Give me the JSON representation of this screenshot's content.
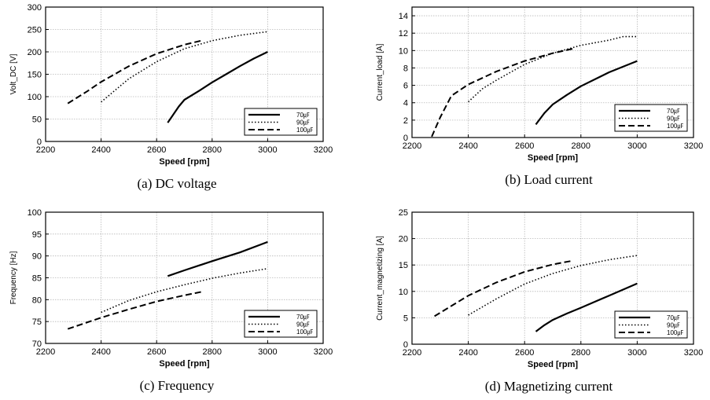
{
  "chart_data": [
    {
      "type": "line",
      "caption": "(a)  DC  voltage",
      "xlabel": "Speed [rpm]",
      "ylabel": "Volt_DC [V]",
      "xlim": [
        2200,
        3200
      ],
      "ylim": [
        0,
        300
      ],
      "xticks": [
        2200,
        2400,
        2600,
        2800,
        3000,
        3200
      ],
      "yticks": [
        0,
        50,
        100,
        150,
        200,
        250,
        300
      ],
      "xtick_labels": [
        "2200",
        "2400",
        "2600",
        "2800",
        "3000",
        "3200"
      ],
      "ytick_labels": [
        "0",
        "50",
        "100",
        "150",
        "200",
        "250",
        "300"
      ],
      "grid": true,
      "legend_position": "bottom-right",
      "series": [
        {
          "name": "70㎌",
          "style": "solid",
          "points": [
            [
              2640,
              42
            ],
            [
              2660,
              60
            ],
            [
              2680,
              78
            ],
            [
              2700,
              93
            ],
            [
              2750,
              112
            ],
            [
              2800,
              132
            ],
            [
              2850,
              150
            ],
            [
              2900,
              168
            ],
            [
              2950,
              185
            ],
            [
              3000,
              200
            ]
          ]
        },
        {
          "name": "90㎌",
          "style": "dotted",
          "points": [
            [
              2400,
              88
            ],
            [
              2500,
              140
            ],
            [
              2600,
              178
            ],
            [
              2700,
              207
            ],
            [
              2800,
              225
            ],
            [
              2900,
              237
            ],
            [
              3000,
              245
            ]
          ]
        },
        {
          "name": "100㎌",
          "style": "dashed",
          "points": [
            [
              2280,
              85
            ],
            [
              2350,
              112
            ],
            [
              2400,
              133
            ],
            [
              2500,
              168
            ],
            [
              2600,
              196
            ],
            [
              2700,
              216
            ],
            [
              2760,
              225
            ]
          ]
        }
      ]
    },
    {
      "type": "line",
      "caption": "(b)  Load  current",
      "xlabel": "Speed [rpm]",
      "ylabel": "Current_load [A]",
      "xlim": [
        2200,
        3200
      ],
      "ylim": [
        0,
        15
      ],
      "xticks": [
        2200,
        2400,
        2600,
        2800,
        3000,
        3200
      ],
      "yticks": [
        0,
        2,
        4,
        6,
        8,
        10,
        12,
        14
      ],
      "xtick_labels": [
        "2200",
        "2400",
        "2600",
        "2800",
        "3000",
        "3200"
      ],
      "ytick_labels": [
        "0",
        "2",
        "4",
        "6",
        "8",
        "10",
        "12",
        "14"
      ],
      "grid": true,
      "legend_position": "bottom-right",
      "series": [
        {
          "name": "70㎌",
          "style": "solid",
          "points": [
            [
              2640,
              1.5
            ],
            [
              2670,
              2.8
            ],
            [
              2700,
              3.8
            ],
            [
              2750,
              4.9
            ],
            [
              2800,
              5.9
            ],
            [
              2900,
              7.5
            ],
            [
              3000,
              8.8
            ]
          ]
        },
        {
          "name": "90㎌",
          "style": "dotted",
          "points": [
            [
              2400,
              4.1
            ],
            [
              2450,
              5.6
            ],
            [
              2500,
              6.6
            ],
            [
              2600,
              8.4
            ],
            [
              2700,
              9.7
            ],
            [
              2800,
              10.6
            ],
            [
              2900,
              11.2
            ],
            [
              2950,
              11.6
            ],
            [
              3000,
              11.6
            ]
          ]
        },
        {
          "name": "100㎌",
          "style": "dashed",
          "points": [
            [
              2270,
              0.1
            ],
            [
              2300,
              2.3
            ],
            [
              2340,
              4.8
            ],
            [
              2400,
              6.1
            ],
            [
              2500,
              7.6
            ],
            [
              2600,
              8.8
            ],
            [
              2700,
              9.7
            ],
            [
              2770,
              10.2
            ]
          ]
        }
      ]
    },
    {
      "type": "line",
      "caption": "(c)  Frequency",
      "xlabel": "Speed [rpm]",
      "ylabel": "Frequency [Hz]",
      "xlim": [
        2200,
        3200
      ],
      "ylim": [
        70,
        100
      ],
      "xticks": [
        2200,
        2400,
        2600,
        2800,
        3000,
        3200
      ],
      "yticks": [
        70,
        75,
        80,
        85,
        90,
        95,
        100
      ],
      "xtick_labels": [
        "2200",
        "2400",
        "2600",
        "2800",
        "3000",
        "3200"
      ],
      "ytick_labels": [
        "70",
        "75",
        "80",
        "85",
        "90",
        "95",
        "100"
      ],
      "grid": true,
      "legend_position": "bottom-right",
      "series": [
        {
          "name": "70㎌",
          "style": "solid",
          "points": [
            [
              2640,
              85.4
            ],
            [
              2700,
              86.7
            ],
            [
              2800,
              88.8
            ],
            [
              2900,
              90.8
            ],
            [
              3000,
              93.2
            ]
          ]
        },
        {
          "name": "90㎌",
          "style": "dotted",
          "points": [
            [
              2400,
              77.1
            ],
            [
              2500,
              79.8
            ],
            [
              2600,
              81.8
            ],
            [
              2700,
              83.4
            ],
            [
              2800,
              84.9
            ],
            [
              2900,
              86.1
            ],
            [
              3000,
              87.1
            ]
          ]
        },
        {
          "name": "100㎌",
          "style": "dashed",
          "points": [
            [
              2280,
              73.3
            ],
            [
              2400,
              75.9
            ],
            [
              2500,
              77.8
            ],
            [
              2600,
              79.6
            ],
            [
              2700,
              81.0
            ],
            [
              2770,
              81.9
            ]
          ]
        }
      ]
    },
    {
      "type": "line",
      "caption": "(d)  Magnetizing  current",
      "xlabel": "Speed [rpm]",
      "ylabel": "Current_magnetizing [A]",
      "xlim": [
        2200,
        3200
      ],
      "ylim": [
        0,
        25
      ],
      "xticks": [
        2200,
        2400,
        2600,
        2800,
        3000,
        3200
      ],
      "yticks": [
        0,
        5,
        10,
        15,
        20,
        25
      ],
      "xtick_labels": [
        "2200",
        "2400",
        "2600",
        "2800",
        "3000",
        "3200"
      ],
      "ytick_labels": [
        "0",
        "5",
        "10",
        "15",
        "20",
        "25"
      ],
      "grid": true,
      "legend_position": "bottom-right",
      "series": [
        {
          "name": "70㎌",
          "style": "solid",
          "points": [
            [
              2640,
              2.4
            ],
            [
              2670,
              3.6
            ],
            [
              2700,
              4.6
            ],
            [
              2750,
              5.8
            ],
            [
              2800,
              6.9
            ],
            [
              2900,
              9.2
            ],
            [
              3000,
              11.5
            ]
          ]
        },
        {
          "name": "90㎌",
          "style": "dotted",
          "points": [
            [
              2400,
              5.5
            ],
            [
              2500,
              8.6
            ],
            [
              2600,
              11.4
            ],
            [
              2700,
              13.4
            ],
            [
              2800,
              14.9
            ],
            [
              2900,
              16.0
            ],
            [
              3000,
              16.8
            ]
          ]
        },
        {
          "name": "100㎌",
          "style": "dashed",
          "points": [
            [
              2280,
              5.3
            ],
            [
              2400,
              9.2
            ],
            [
              2500,
              11.7
            ],
            [
              2600,
              13.7
            ],
            [
              2700,
              15.1
            ],
            [
              2770,
              15.8
            ]
          ]
        }
      ]
    }
  ]
}
